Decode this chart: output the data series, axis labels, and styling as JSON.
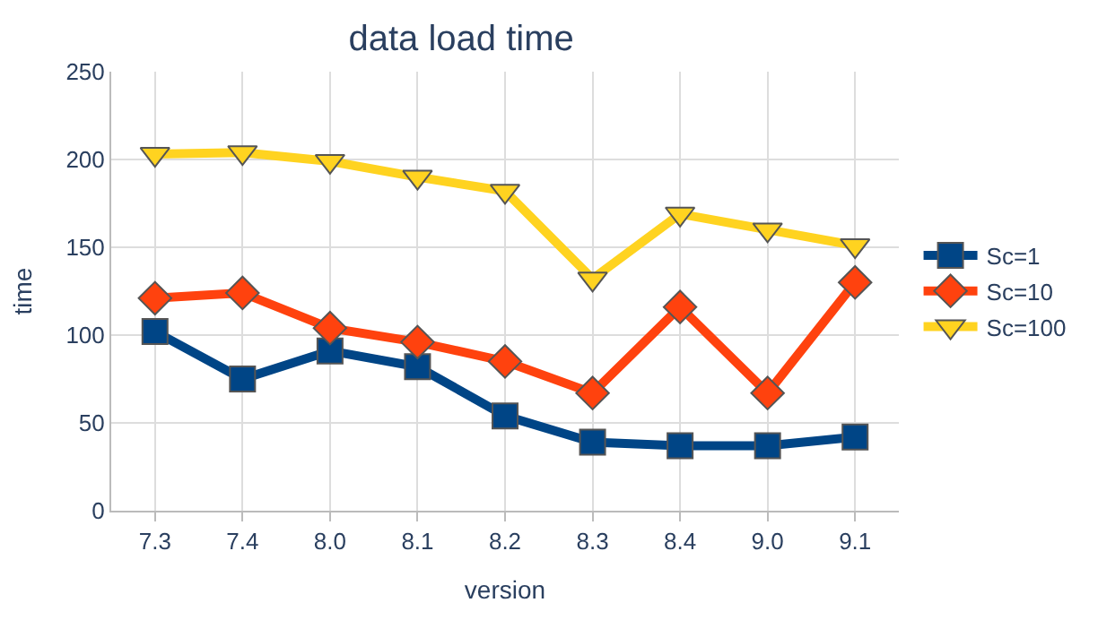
{
  "chart_data": {
    "type": "line",
    "title": "data load time",
    "xlabel": "version",
    "ylabel": "time",
    "categories": [
      "7.3",
      "7.4",
      "8.0",
      "8.1",
      "8.2",
      "8.3",
      "8.4",
      "9.0",
      "9.1"
    ],
    "series": [
      {
        "name": "Sc=1",
        "color": "#004586",
        "marker": "square",
        "values": [
          102,
          75,
          91,
          82,
          54,
          39,
          37,
          37,
          42
        ]
      },
      {
        "name": "Sc=10",
        "color": "#ff420e",
        "marker": "diamond",
        "values": [
          121,
          124,
          104,
          96,
          85,
          67,
          116,
          67,
          130
        ]
      },
      {
        "name": "Sc=100",
        "color": "#ffd320",
        "marker": "triangle",
        "values": [
          203,
          204,
          199,
          190,
          182,
          132,
          169,
          160,
          151
        ]
      }
    ],
    "ylim": [
      0,
      250
    ],
    "yticks": [
      0,
      50,
      100,
      150,
      200,
      250
    ],
    "grid": true,
    "legend": "right"
  }
}
